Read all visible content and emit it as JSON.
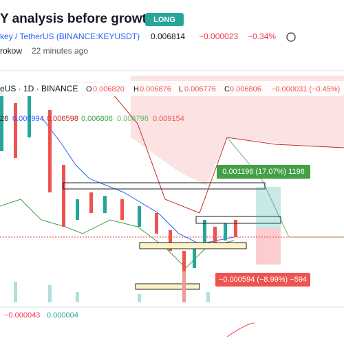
{
  "header": {
    "title": "Y analysis before growth",
    "badge": "LONG"
  },
  "symbol": {
    "name": "key / TetherUS (BINANCE:KEYUSDT)",
    "price": "0.006814",
    "change": "−0.000023",
    "change_pct": "−0.34%"
  },
  "author": {
    "name": "rokow",
    "time": "22 minutes ago"
  },
  "legend": {
    "symbol": "eUS · 1D · BINANCE",
    "o_label": "O",
    "o": "0.006820",
    "h_label": "H",
    "h": "0.006876",
    "l_label": "L",
    "l": "0.006776",
    "c_label": "C",
    "c": "0.006806",
    "change": "−0.000031 (−0.45%)"
  },
  "indicator": {
    "period": "26",
    "values": [
      "0.006994",
      "0.006598",
      "0.006806",
      "0.006796",
      "0.009154"
    ]
  },
  "long_label": "0.001196 (17.07%) 1196",
  "short_label": "−0.000594 (−8.99%) −594",
  "macd": {
    "values": [
      "−0.000043",
      "0.000004"
    ]
  }
}
